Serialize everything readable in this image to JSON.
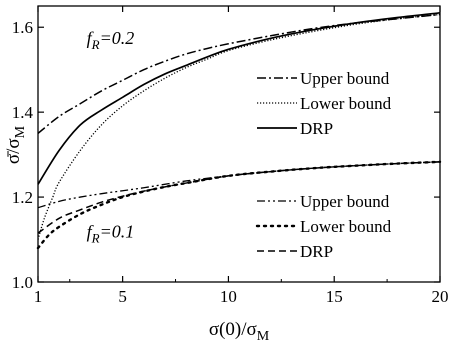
{
  "chart_data": {
    "type": "line",
    "xlabel": "σ(0)/σ",
    "xlabel_sub": "M",
    "ylabel": "σ̄/σ",
    "ylabel_sub": "M",
    "xlim": [
      1,
      20
    ],
    "ylim": [
      1.0,
      1.65
    ],
    "xticks": [
      1,
      5,
      10,
      15,
      20
    ],
    "yticks": [
      1.0,
      1.2,
      1.4,
      1.6
    ],
    "xtick_labels": [
      "1",
      "5",
      "10",
      "15",
      "20"
    ],
    "ytick_labels": [
      "1.0",
      "1.2",
      "1.4",
      "1.6"
    ],
    "grid": false,
    "annotations": [
      {
        "id": "fr02",
        "prefix": "f",
        "sub": "R",
        "suffix": "=0.2",
        "x": 3.3,
        "y": 1.56
      },
      {
        "id": "fr01",
        "prefix": "f",
        "sub": "R",
        "suffix": "=0.1",
        "x": 3.3,
        "y": 1.105
      }
    ],
    "legends": [
      {
        "placement": "right-middle",
        "entries": [
          {
            "label": "Upper bound",
            "style": "dashdot"
          },
          {
            "label": "Lower bound",
            "style": "dotted"
          },
          {
            "label": "DRP",
            "style": "solid"
          }
        ]
      },
      {
        "placement": "bottom-right",
        "entries": [
          {
            "label": "Upper bound",
            "style": "dashdotdot"
          },
          {
            "label": "Lower bound",
            "style": "dotted-heavy"
          },
          {
            "label": "DRP",
            "style": "dashed"
          }
        ]
      }
    ],
    "series": [
      {
        "group": "fR=0.2",
        "style": "dashdot",
        "x": [
          1,
          2,
          3,
          4,
          5,
          6,
          7,
          8,
          9,
          10,
          12,
          14,
          16,
          18,
          20
        ],
        "y": [
          1.35,
          1.39,
          1.42,
          1.45,
          1.475,
          1.5,
          1.52,
          1.537,
          1.55,
          1.561,
          1.58,
          1.597,
          1.61,
          1.62,
          1.63
        ]
      },
      {
        "group": "fR=0.2",
        "style": "dotted",
        "x": [
          1,
          1.3,
          1.7,
          2,
          3,
          4,
          5,
          6,
          7,
          8,
          9,
          10,
          12,
          14,
          16,
          18,
          20
        ],
        "y": [
          1.1,
          1.15,
          1.2,
          1.235,
          1.31,
          1.37,
          1.415,
          1.45,
          1.48,
          1.505,
          1.525,
          1.545,
          1.57,
          1.59,
          1.607,
          1.62,
          1.63
        ]
      },
      {
        "group": "fR=0.2",
        "style": "solid",
        "x": [
          1,
          2,
          3,
          4,
          5,
          6,
          7,
          8,
          9,
          10,
          12,
          14,
          16,
          18,
          20
        ],
        "y": [
          1.23,
          1.31,
          1.37,
          1.405,
          1.435,
          1.465,
          1.49,
          1.51,
          1.53,
          1.548,
          1.574,
          1.594,
          1.61,
          1.623,
          1.634
        ]
      },
      {
        "group": "fR=0.1",
        "style": "dashdotdot",
        "x": [
          1,
          2,
          3,
          4,
          5,
          6,
          8,
          10,
          12,
          14,
          16,
          18,
          20
        ],
        "y": [
          1.175,
          1.19,
          1.2,
          1.208,
          1.215,
          1.222,
          1.238,
          1.25,
          1.26,
          1.268,
          1.274,
          1.279,
          1.283
        ]
      },
      {
        "group": "fR=0.1",
        "style": "dotted-heavy",
        "x": [
          1,
          1.5,
          2,
          3,
          4,
          5,
          6,
          7,
          8,
          10,
          12,
          14,
          16,
          18,
          20
        ],
        "y": [
          1.08,
          1.11,
          1.13,
          1.16,
          1.182,
          1.2,
          1.213,
          1.224,
          1.233,
          1.25,
          1.26,
          1.268,
          1.274,
          1.279,
          1.283
        ]
      },
      {
        "group": "fR=0.1",
        "style": "dashed",
        "x": [
          1,
          2,
          3,
          4,
          5,
          6,
          7,
          8,
          10,
          12,
          14,
          16,
          18,
          20
        ],
        "y": [
          1.115,
          1.15,
          1.17,
          1.188,
          1.202,
          1.214,
          1.224,
          1.233,
          1.25,
          1.26,
          1.268,
          1.274,
          1.279,
          1.283
        ]
      }
    ]
  }
}
